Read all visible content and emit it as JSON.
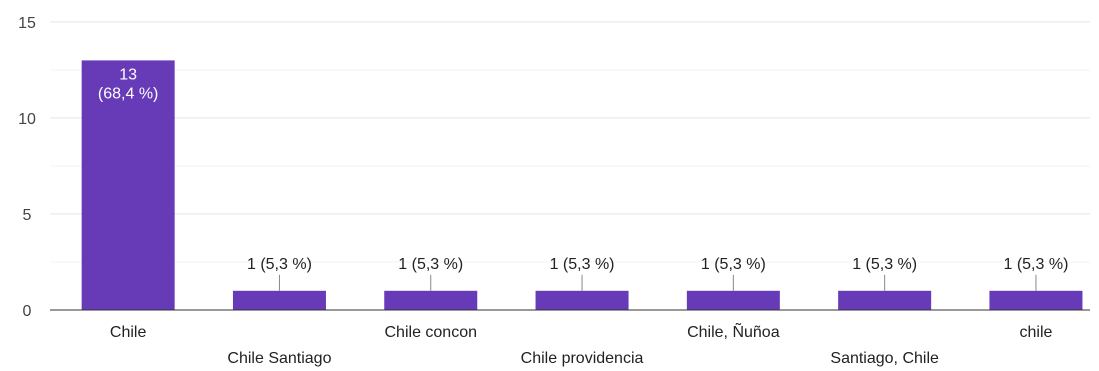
{
  "chart_data": {
    "type": "bar",
    "categories": [
      "Chile",
      "Chile Santiago",
      "Chile concon",
      "Chile providencia",
      "Chile, Ñuñoa",
      "Santiago, Chile",
      "chile"
    ],
    "values": [
      13,
      1,
      1,
      1,
      1,
      1,
      1
    ],
    "data_labels": [
      "13\n(68,4 %)",
      "1 (5,3 %)",
      "1 (5,3 %)",
      "1 (5,3 %)",
      "1 (5,3 %)",
      "1 (5,3 %)",
      "1 (5,3 %)"
    ],
    "y_ticks": [
      0,
      5,
      10,
      15
    ],
    "ylim": [
      0,
      15
    ],
    "grid": true,
    "legend": "none",
    "bar_color": "#673ab7",
    "gridline_color": "#e6e6e6",
    "minor_gridline_color": "#f3f3f3",
    "axis_color": "#333333"
  }
}
